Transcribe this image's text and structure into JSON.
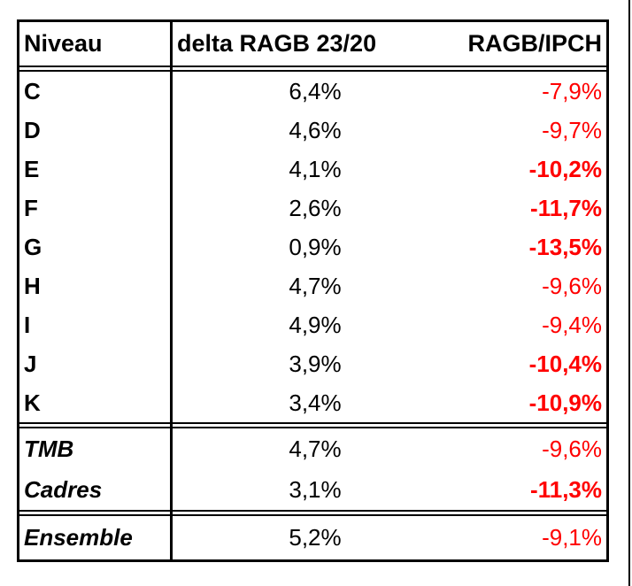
{
  "colors": {
    "negative_value": "#ff0000",
    "text": "#000000",
    "border": "#000000",
    "background": "#ffffff"
  },
  "chart_data": {
    "type": "table",
    "columns": [
      "Niveau",
      "delta RAGB 23/20",
      "RAGB/IPCH"
    ],
    "header": {
      "niveau": "Niveau",
      "delta": "delta RAGB 23/20",
      "ratio": "RAGB/IPCH"
    },
    "rows": [
      {
        "label": "C",
        "label_style": "bold",
        "delta": "6,4%",
        "delta_value": 6.4,
        "ratio": "-7,9%",
        "ratio_value": -7.9,
        "ratio_weight": "normal"
      },
      {
        "label": "D",
        "label_style": "bold",
        "delta": "4,6%",
        "delta_value": 4.6,
        "ratio": "-9,7%",
        "ratio_value": -9.7,
        "ratio_weight": "normal"
      },
      {
        "label": "E",
        "label_style": "bold",
        "delta": "4,1%",
        "delta_value": 4.1,
        "ratio": "-10,2%",
        "ratio_value": -10.2,
        "ratio_weight": "bold"
      },
      {
        "label": "F",
        "label_style": "bold",
        "delta": "2,6%",
        "delta_value": 2.6,
        "ratio": "-11,7%",
        "ratio_value": -11.7,
        "ratio_weight": "bold"
      },
      {
        "label": "G",
        "label_style": "bold",
        "delta": "0,9%",
        "delta_value": 0.9,
        "ratio": "-13,5%",
        "ratio_value": -13.5,
        "ratio_weight": "bold"
      },
      {
        "label": "H",
        "label_style": "bold",
        "delta": "4,7%",
        "delta_value": 4.7,
        "ratio": "-9,6%",
        "ratio_value": -9.6,
        "ratio_weight": "normal"
      },
      {
        "label": "I",
        "label_style": "bold",
        "delta": "4,9%",
        "delta_value": 4.9,
        "ratio": "-9,4%",
        "ratio_value": -9.4,
        "ratio_weight": "normal"
      },
      {
        "label": "J",
        "label_style": "bold",
        "delta": "3,9%",
        "delta_value": 3.9,
        "ratio": "-10,4%",
        "ratio_value": -10.4,
        "ratio_weight": "bold"
      },
      {
        "label": "K",
        "label_style": "bold",
        "delta": "3,4%",
        "delta_value": 3.4,
        "ratio": "-10,9%",
        "ratio_value": -10.9,
        "ratio_weight": "bold"
      },
      {
        "label": "TMB",
        "label_style": "bold-italic",
        "delta": "4,7%",
        "delta_value": 4.7,
        "ratio": "-9,6%",
        "ratio_value": -9.6,
        "ratio_weight": "normal"
      },
      {
        "label": "Cadres",
        "label_style": "bold-italic",
        "delta": "3,1%",
        "delta_value": 3.1,
        "ratio": "-11,3%",
        "ratio_value": -11.3,
        "ratio_weight": "bold"
      },
      {
        "label": "Ensemble",
        "label_style": "bold-italic",
        "delta": "5,2%",
        "delta_value": 5.2,
        "ratio": "-9,1%",
        "ratio_value": -9.1,
        "ratio_weight": "normal"
      }
    ]
  }
}
